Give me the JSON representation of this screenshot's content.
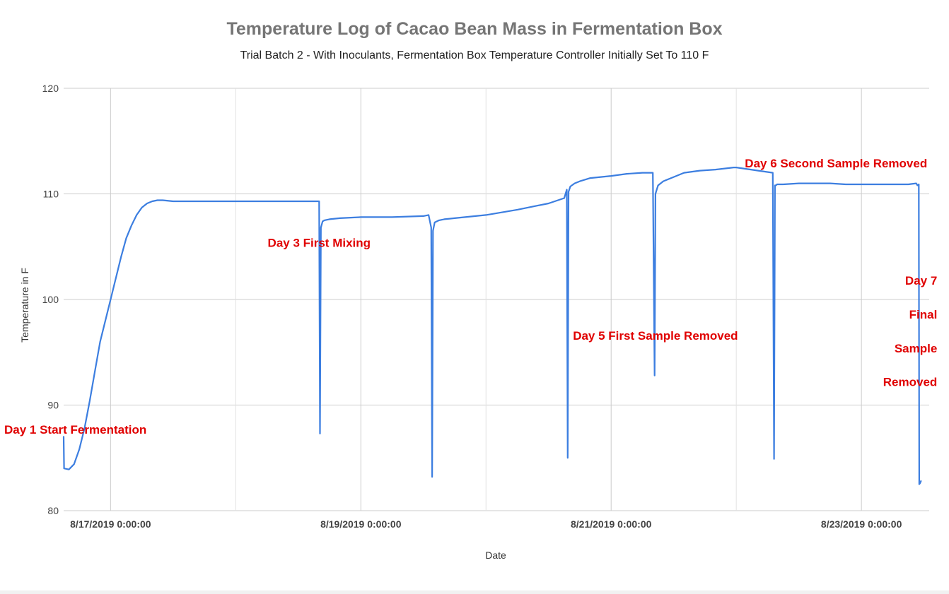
{
  "chart_data": {
    "type": "line",
    "title": "Temperature Log of Cacao  Bean Mass in Fermentation Box",
    "subtitle": "Trial Batch 2 -  With Inoculants, Fermentation Box Temperature Controller Initially Set To 110 F",
    "xlabel": "Date",
    "ylabel": "Temperature in F",
    "ylim": [
      80,
      120
    ],
    "yticks": [
      80,
      90,
      100,
      110,
      120
    ],
    "xlim": [
      "2019-08-16T15:00",
      "2019-08-23T13:00"
    ],
    "xticks": [
      {
        "value": "2019-08-17T00:00",
        "label": "8/17/2019 0:00:00"
      },
      {
        "value": "2019-08-19T00:00",
        "label": "8/19/2019 0:00:00"
      },
      {
        "value": "2019-08-21T00:00",
        "label": "8/21/2019 0:00:00"
      },
      {
        "value": "2019-08-23T00:00",
        "label": "8/23/2019 0:00:00"
      }
    ],
    "grid": true,
    "line_color": "#3c7ee0",
    "annotation_color": "#e00000",
    "series": [
      {
        "x": [
          "2019-08-16T15:00",
          "2019-08-16T15:05",
          "2019-08-16T16:00",
          "2019-08-16T17:00",
          "2019-08-16T18:00",
          "2019-08-16T19:00",
          "2019-08-16T20:00",
          "2019-08-16T21:00",
          "2019-08-16T22:00",
          "2019-08-17T00:00",
          "2019-08-17T02:00",
          "2019-08-17T03:00",
          "2019-08-17T04:00",
          "2019-08-17T05:00",
          "2019-08-17T06:00",
          "2019-08-17T07:00",
          "2019-08-17T08:00",
          "2019-08-17T09:00",
          "2019-08-17T10:00",
          "2019-08-17T12:00",
          "2019-08-17T14:00",
          "2019-08-17T18:00",
          "2019-08-18T00:00",
          "2019-08-18T06:00",
          "2019-08-18T12:00",
          "2019-08-18T16:00",
          "2019-08-18T16:10",
          "2019-08-18T16:20",
          "2019-08-18T16:40",
          "2019-08-18T17:00",
          "2019-08-18T18:00",
          "2019-08-18T20:00",
          "2019-08-19T00:00",
          "2019-08-19T06:00",
          "2019-08-19T12:00",
          "2019-08-19T13:00",
          "2019-08-19T13:30",
          "2019-08-19T13:40",
          "2019-08-19T13:50",
          "2019-08-19T14:10",
          "2019-08-19T15:00",
          "2019-08-19T16:00",
          "2019-08-19T18:00",
          "2019-08-20T00:00",
          "2019-08-20T06:00",
          "2019-08-20T12:00",
          "2019-08-20T15:00",
          "2019-08-20T15:30",
          "2019-08-20T15:40",
          "2019-08-20T15:50",
          "2019-08-20T16:10",
          "2019-08-20T17:00",
          "2019-08-20T18:00",
          "2019-08-20T20:00",
          "2019-08-21T00:00",
          "2019-08-21T03:00",
          "2019-08-21T06:00",
          "2019-08-21T08:00",
          "2019-08-21T08:20",
          "2019-08-21T08:30",
          "2019-08-21T08:45",
          "2019-08-21T09:00",
          "2019-08-21T10:00",
          "2019-08-21T12:00",
          "2019-08-21T14:00",
          "2019-08-21T17:00",
          "2019-08-21T20:00",
          "2019-08-21T23:30",
          "2019-08-22T00:00",
          "2019-08-22T07:00",
          "2019-08-22T07:15",
          "2019-08-22T07:25",
          "2019-08-22T07:35",
          "2019-08-22T07:50",
          "2019-08-22T09:00",
          "2019-08-22T12:00",
          "2019-08-22T15:00",
          "2019-08-22T18:00",
          "2019-08-22T21:00",
          "2019-08-23T00:00",
          "2019-08-23T03:00",
          "2019-08-23T06:00",
          "2019-08-23T09:00",
          "2019-08-23T10:30",
          "2019-08-23T10:45",
          "2019-08-23T11:00",
          "2019-08-23T11:05",
          "2019-08-23T11:15",
          "2019-08-23T11:25"
        ],
        "y": [
          87,
          84,
          83.9,
          84.4,
          85.8,
          87.8,
          90.4,
          93.2,
          96,
          100,
          104,
          105.8,
          107,
          108,
          108.7,
          109.1,
          109.3,
          109.4,
          109.4,
          109.3,
          109.3,
          109.3,
          109.3,
          109.3,
          109.3,
          109.3,
          87.3,
          106.8,
          107.4,
          107.5,
          107.6,
          107.7,
          107.8,
          107.8,
          107.9,
          108,
          106.8,
          83.2,
          106.5,
          107.3,
          107.5,
          107.6,
          107.7,
          108,
          108.5,
          109.1,
          109.6,
          110.4,
          85,
          110.2,
          110.7,
          111,
          111.2,
          111.5,
          111.7,
          111.9,
          112,
          112,
          92.8,
          110,
          110.4,
          110.8,
          111.2,
          111.6,
          112,
          112.2,
          112.3,
          112.5,
          112.5,
          112,
          84.9,
          110.8,
          110.8,
          110.9,
          110.9,
          111,
          111,
          111,
          110.9,
          110.9,
          110.9,
          110.9,
          110.9,
          111,
          110.8,
          110.9,
          82.5,
          82.6,
          82.8
        ]
      }
    ],
    "annotations": [
      {
        "text": "Day 1 Start Fermentation",
        "x": "2019-08-16T15:00",
        "y": 87.3
      },
      {
        "text": "Day 3 First Mixing",
        "x": "2019-08-18T16:00",
        "y": 105
      },
      {
        "text": "Day 5 First Sample Removed",
        "x": "2019-08-21T08:30",
        "y": 96.2
      },
      {
        "text": "Day 6 Second Sample Removed",
        "x": "2019-08-22T07:20",
        "y": 112.5
      },
      {
        "text": "Day 7",
        "x": "2019-08-23T11:00",
        "y": 101.4
      },
      {
        "text": "Final",
        "x": "2019-08-23T11:00",
        "y": 98.2
      },
      {
        "text": "Sample",
        "x": "2019-08-23T11:00",
        "y": 95
      },
      {
        "text": "Removed",
        "x": "2019-08-23T11:00",
        "y": 91.8
      }
    ]
  }
}
